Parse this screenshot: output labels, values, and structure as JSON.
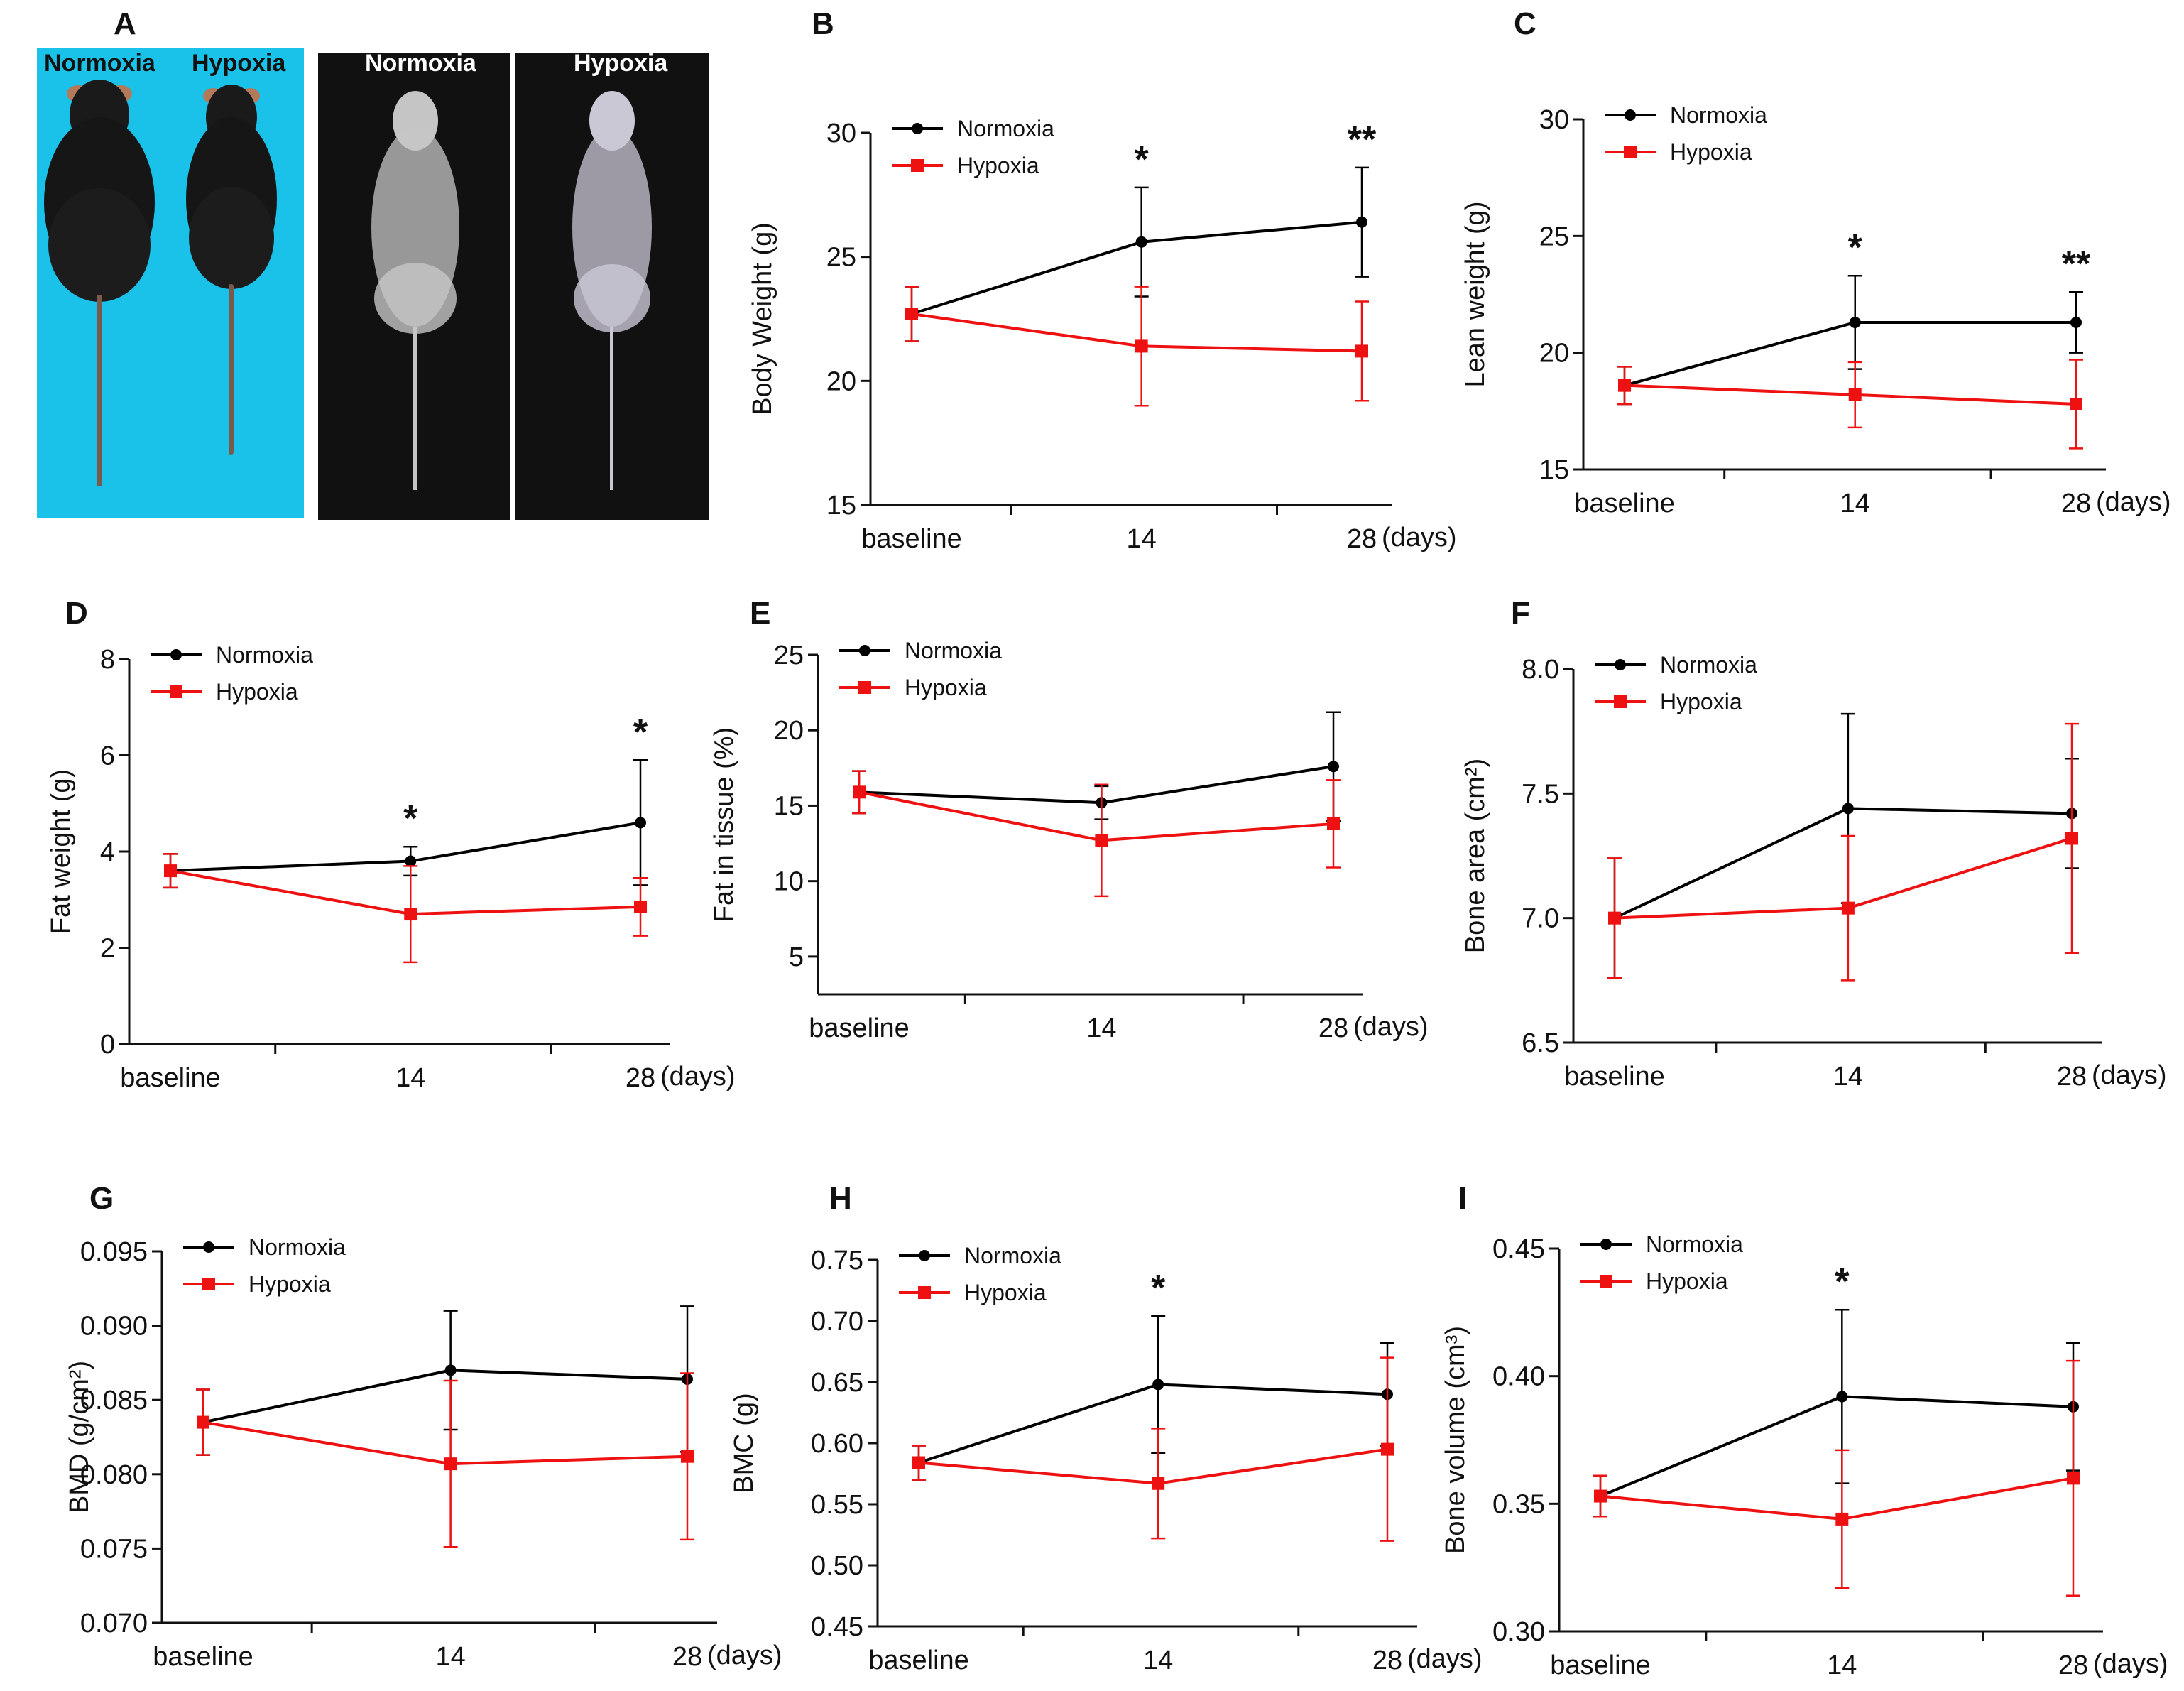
{
  "colors": {
    "normoxia": "#000000",
    "hypoxia": "#ee1111",
    "photo_bg": "#1ac1e8",
    "xray_bg": "#111111"
  },
  "panel_a": {
    "letter": "A",
    "photo_labels": [
      "Normoxia",
      "Hypoxia"
    ],
    "xray_labels": [
      "Normoxia",
      "Hypoxia"
    ]
  },
  "chart_data": [
    {
      "panel": "B",
      "type": "line",
      "xlabel": "",
      "x_unit": "(days)",
      "ylabel": "Body Weight (g)",
      "ylim": [
        15,
        30
      ],
      "yticks": [
        "15",
        "20",
        "25",
        "30"
      ],
      "categories": [
        "baseline",
        "14",
        "28"
      ],
      "series": [
        {
          "name": "Normoxia",
          "values": [
            22.7,
            25.6,
            26.4
          ],
          "err": [
            1.1,
            2.2,
            2.2
          ]
        },
        {
          "name": "Hypoxia",
          "values": [
            22.7,
            21.4,
            21.2
          ],
          "err": [
            1.1,
            2.4,
            2.0
          ]
        }
      ],
      "significance": [
        "",
        "*",
        "**"
      ]
    },
    {
      "panel": "C",
      "type": "line",
      "xlabel": "",
      "x_unit": "(days)",
      "ylabel": "Lean weight  (g)",
      "ylim": [
        15,
        30
      ],
      "yticks": [
        "15",
        "20",
        "25",
        "30"
      ],
      "categories": [
        "baseline",
        "14",
        "28"
      ],
      "series": [
        {
          "name": "Normoxia",
          "values": [
            18.6,
            21.3,
            21.3
          ],
          "err": [
            0.8,
            2.0,
            1.3
          ]
        },
        {
          "name": "Hypoxia",
          "values": [
            18.6,
            18.2,
            17.8
          ],
          "err": [
            0.8,
            1.4,
            1.9
          ]
        }
      ],
      "significance": [
        "",
        "*",
        "**"
      ]
    },
    {
      "panel": "D",
      "type": "line",
      "xlabel": "",
      "x_unit": "(days)",
      "ylabel": "Fat weight (g)",
      "ylim": [
        0,
        8
      ],
      "yticks": [
        "0",
        "2",
        "4",
        "6",
        "8"
      ],
      "categories": [
        "baseline",
        "14",
        "28"
      ],
      "series": [
        {
          "name": "Normoxia",
          "values": [
            3.6,
            3.8,
            4.6
          ],
          "err": [
            0.35,
            0.3,
            1.3
          ]
        },
        {
          "name": "Hypoxia",
          "values": [
            3.6,
            2.7,
            2.85
          ],
          "err": [
            0.35,
            1.0,
            0.6
          ]
        }
      ],
      "significance": [
        "",
        "*",
        "*"
      ]
    },
    {
      "panel": "E",
      "type": "line",
      "xlabel": "",
      "x_unit": "(days)",
      "ylabel": "Fat in tissue (%)",
      "ylim": [
        2.5,
        25
      ],
      "yticks": [
        "5",
        "10",
        "15",
        "20",
        "25"
      ],
      "categories": [
        "baseline",
        "14",
        "28"
      ],
      "series": [
        {
          "name": "Normoxia",
          "values": [
            15.9,
            15.2,
            17.6
          ],
          "err": [
            1.4,
            1.1,
            3.6
          ]
        },
        {
          "name": "Hypoxia",
          "values": [
            15.9,
            12.7,
            13.8
          ],
          "err": [
            1.4,
            3.7,
            2.9
          ]
        }
      ],
      "significance": [
        "",
        "",
        ""
      ]
    },
    {
      "panel": "F",
      "type": "line",
      "xlabel": "",
      "x_unit": "(days)",
      "ylabel": "Bone area (cm²)",
      "ylim": [
        6.5,
        8.0
      ],
      "yticks": [
        "6.5",
        "7.0",
        "7.5",
        "8.0"
      ],
      "categories": [
        "baseline",
        "14",
        "28"
      ],
      "series": [
        {
          "name": "Normoxia",
          "values": [
            7.0,
            7.44,
            7.42
          ],
          "err": [
            0.24,
            0.38,
            0.22
          ]
        },
        {
          "name": "Hypoxia",
          "values": [
            7.0,
            7.04,
            7.32
          ],
          "err": [
            0.24,
            0.29,
            0.46
          ]
        }
      ],
      "significance": [
        "",
        "",
        ""
      ]
    },
    {
      "panel": "G",
      "type": "line",
      "xlabel": "",
      "x_unit": "(days)",
      "ylabel": "BMD (g/cm²)",
      "ylim": [
        0.07,
        0.095
      ],
      "yticks": [
        "0.070",
        "0.075",
        "0.080",
        "0.085",
        "0.090",
        "0.095"
      ],
      "categories": [
        "baseline",
        "14",
        "28"
      ],
      "series": [
        {
          "name": "Normoxia",
          "values": [
            0.0835,
            0.087,
            0.0864
          ],
          "err": [
            0.0022,
            0.004,
            0.0049
          ]
        },
        {
          "name": "Hypoxia",
          "values": [
            0.0835,
            0.0807,
            0.0812
          ],
          "err": [
            0.0022,
            0.0056,
            0.0056
          ]
        }
      ],
      "significance": [
        "",
        "",
        ""
      ]
    },
    {
      "panel": "H",
      "type": "line",
      "xlabel": "",
      "x_unit": "(days)",
      "ylabel": "BMC (g)",
      "ylim": [
        0.45,
        0.75
      ],
      "yticks": [
        "0.45",
        "0.50",
        "0.55",
        "0.60",
        "0.65",
        "0.70",
        "0.75"
      ],
      "categories": [
        "baseline",
        "14",
        "28"
      ],
      "series": [
        {
          "name": "Normoxia",
          "values": [
            0.584,
            0.648,
            0.64
          ],
          "err": [
            0.014,
            0.056,
            0.042
          ]
        },
        {
          "name": "Hypoxia",
          "values": [
            0.584,
            0.567,
            0.595
          ],
          "err": [
            0.014,
            0.045,
            0.075
          ]
        }
      ],
      "significance": [
        "",
        "*",
        ""
      ]
    },
    {
      "panel": "I",
      "type": "line",
      "xlabel": "",
      "x_unit": "(days)",
      "ylabel": "Bone volume (cm³)",
      "ylim": [
        0.3,
        0.45
      ],
      "yticks": [
        "0.30",
        "0.35",
        "0.40",
        "0.45"
      ],
      "categories": [
        "baseline",
        "14",
        "28"
      ],
      "series": [
        {
          "name": "Normoxia",
          "values": [
            0.353,
            0.392,
            0.388
          ],
          "err": [
            0.008,
            0.034,
            0.025
          ]
        },
        {
          "name": "Hypoxia",
          "values": [
            0.353,
            0.344,
            0.36
          ],
          "err": [
            0.008,
            0.027,
            0.046
          ]
        }
      ],
      "significance": [
        "",
        "*",
        ""
      ]
    }
  ]
}
